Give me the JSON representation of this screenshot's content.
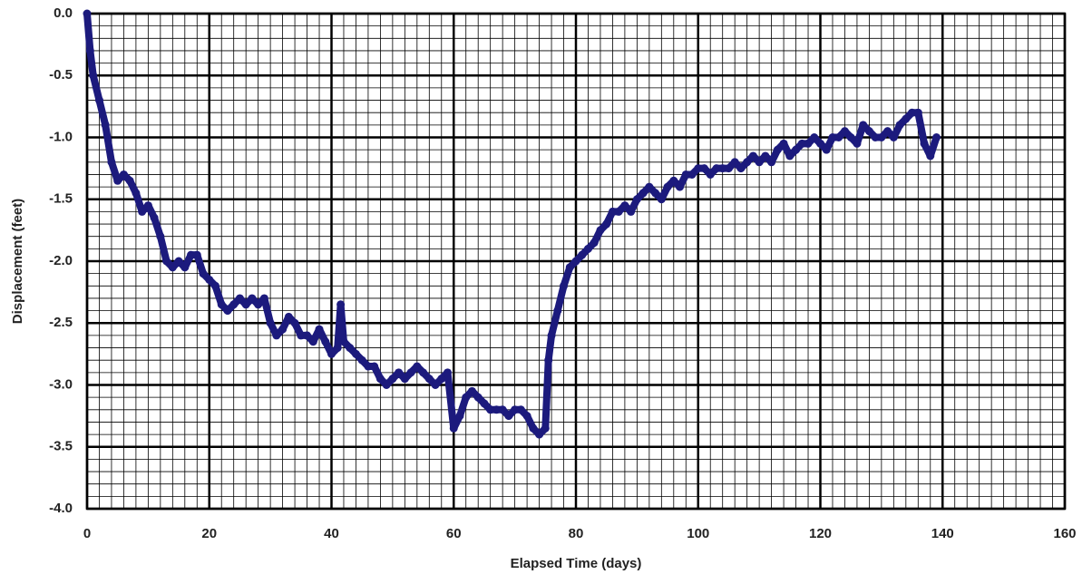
{
  "chart_data": {
    "type": "scatter",
    "xlabel": "Elapsed Time (days)",
    "ylabel": "Displacement (feet)",
    "color": "#1c1a7d",
    "grid": true,
    "xlim": [
      0,
      160
    ],
    "xticks": [
      0,
      20,
      40,
      60,
      80,
      100,
      120,
      140,
      160
    ],
    "ylim": [
      -4,
      0
    ],
    "yticks": [
      {
        "value": 0,
        "label": "0.0"
      },
      -0.5,
      {
        "value": -1,
        "label": "-1.0"
      },
      -1.5,
      {
        "value": -2,
        "label": "-2.0"
      },
      -2.5,
      {
        "value": -3,
        "label": "-3.0"
      },
      -3.5,
      {
        "value": -4,
        "label": "-4.0"
      }
    ],
    "x": [
      0,
      0.5,
      1,
      2,
      3,
      4,
      5,
      6,
      7,
      8,
      9,
      10,
      11,
      12,
      13,
      14,
      15,
      16,
      17,
      18,
      19,
      20,
      21,
      22,
      23,
      24,
      25,
      26,
      27,
      28,
      29,
      30,
      31,
      32,
      33,
      34,
      35,
      36,
      37,
      38,
      39,
      40,
      41,
      41.5,
      42,
      43,
      44,
      45,
      46,
      47,
      48,
      49,
      50,
      51,
      52,
      53,
      54,
      55,
      56,
      57,
      58,
      59,
      60,
      61,
      62,
      63,
      64,
      65,
      66,
      67,
      68,
      69,
      70,
      71,
      72,
      73,
      74,
      75,
      75.5,
      76,
      77,
      78,
      79,
      80,
      81,
      82,
      83,
      84,
      85,
      86,
      87,
      88,
      89,
      90,
      91,
      92,
      93,
      94,
      95,
      96,
      97,
      98,
      99,
      100,
      101,
      102,
      103,
      104,
      105,
      106,
      107,
      108,
      109,
      110,
      111,
      112,
      113,
      114,
      115,
      116,
      117,
      118,
      119,
      120,
      121,
      122,
      123,
      124,
      125,
      126,
      127,
      128,
      129,
      130,
      131,
      132,
      133,
      134,
      135,
      136,
      137,
      138,
      139
    ],
    "values": [
      0,
      -0.3,
      -0.5,
      -0.7,
      -0.9,
      -1.2,
      -1.35,
      -1.3,
      -1.35,
      -1.45,
      -1.6,
      -1.55,
      -1.65,
      -1.8,
      -2.0,
      -2.05,
      -2.0,
      -2.05,
      -1.95,
      -1.95,
      -2.1,
      -2.15,
      -2.2,
      -2.35,
      -2.4,
      -2.35,
      -2.3,
      -2.35,
      -2.3,
      -2.35,
      -2.3,
      -2.5,
      -2.6,
      -2.55,
      -2.45,
      -2.5,
      -2.6,
      -2.6,
      -2.65,
      -2.55,
      -2.65,
      -2.75,
      -2.7,
      -2.35,
      -2.65,
      -2.7,
      -2.75,
      -2.8,
      -2.85,
      -2.85,
      -2.95,
      -3.0,
      -2.95,
      -2.9,
      -2.95,
      -2.9,
      -2.85,
      -2.9,
      -2.95,
      -3.0,
      -2.95,
      -2.9,
      -3.35,
      -3.25,
      -3.1,
      -3.05,
      -3.1,
      -3.15,
      -3.2,
      -3.2,
      -3.2,
      -3.25,
      -3.2,
      -3.2,
      -3.25,
      -3.35,
      -3.4,
      -3.35,
      -2.8,
      -2.6,
      -2.4,
      -2.2,
      -2.05,
      -2.0,
      -1.95,
      -1.9,
      -1.85,
      -1.75,
      -1.7,
      -1.6,
      -1.6,
      -1.55,
      -1.6,
      -1.5,
      -1.45,
      -1.4,
      -1.45,
      -1.5,
      -1.4,
      -1.35,
      -1.4,
      -1.3,
      -1.3,
      -1.25,
      -1.25,
      -1.3,
      -1.25,
      -1.25,
      -1.25,
      -1.2,
      -1.25,
      -1.2,
      -1.15,
      -1.2,
      -1.15,
      -1.2,
      -1.1,
      -1.05,
      -1.15,
      -1.1,
      -1.05,
      -1.05,
      -1.0,
      -1.05,
      -1.1,
      -1.0,
      -1.0,
      -0.95,
      -1.0,
      -1.05,
      -0.9,
      -0.95,
      -1.0,
      -1.0,
      -0.95,
      -1.0,
      -0.9,
      -0.85,
      -0.8,
      -0.8,
      -1.05,
      -1.15,
      -1.0
    ]
  }
}
